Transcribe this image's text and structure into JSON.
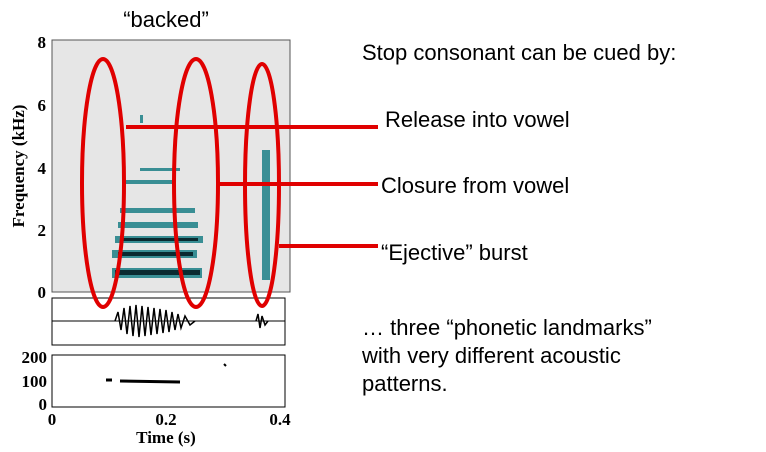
{
  "slide": {
    "figure": {
      "title": "“backed”",
      "y_label": "Frequency (kHz)",
      "y_ticks": [
        "0",
        "2",
        "4",
        "6",
        "8"
      ],
      "pitch_ticks": [
        "0",
        "100",
        "200"
      ],
      "x_ticks": [
        "0",
        "0.2",
        "0.4"
      ],
      "x_label": "Time (s)"
    },
    "heading": "Stop consonant can be cued by:",
    "callouts": [
      "Release into vowel",
      "Closure from vowel",
      "“Ejective” burst"
    ],
    "conclusion": [
      "… three “phonetic landmarks”",
      "with very different acoustic",
      "patterns."
    ]
  }
}
